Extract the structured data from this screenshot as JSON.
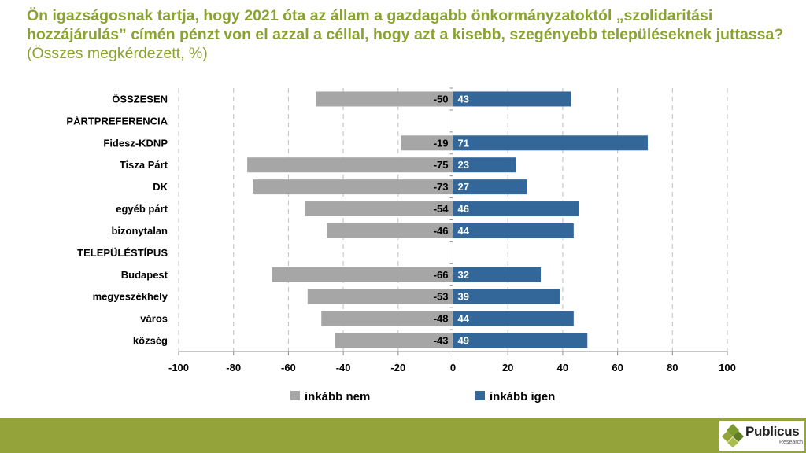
{
  "title": {
    "question": "Ön igazságosnak tartja, hogy 2021 óta az állam a gazdagabb önkormányzatoktól „szolidaritási hozzájárulás” címén pénzt von el azzal a céllal, hogy azt a kisebb, szegényebb településeknek juttassa?",
    "note": "(Összes megkérdezett, %)"
  },
  "chart_data": {
    "type": "bar",
    "orientation": "horizontal",
    "stacked": "diverging",
    "categories": [
      "ÖSSZESEN",
      "PÁRTPREFERENCIA",
      "Fidesz-KDNP",
      "Tisza Párt",
      "DK",
      "egyéb párt",
      "bizonytalan",
      "TELEPÜLÉSTÍPUS",
      "Budapest",
      "megyeszékhely",
      "város",
      "község"
    ],
    "series": [
      {
        "name": "inkább nem",
        "color": "#a6a6a6",
        "values": [
          -50,
          null,
          -19,
          -75,
          -73,
          -54,
          -46,
          null,
          -66,
          -53,
          -48,
          -43
        ]
      },
      {
        "name": "inkább igen",
        "color": "#336699",
        "values": [
          43,
          null,
          71,
          23,
          27,
          46,
          44,
          null,
          32,
          39,
          44,
          49
        ]
      }
    ],
    "xlim": [
      -100,
      100
    ],
    "xticks": [
      "-100",
      "-80",
      "-60",
      "-40",
      "-20",
      "0",
      "20",
      "40",
      "60",
      "80",
      "100"
    ],
    "grid": "vertical dashed",
    "legend_position": "bottom"
  },
  "logo": {
    "name": "Publicus",
    "sub": "Research"
  }
}
